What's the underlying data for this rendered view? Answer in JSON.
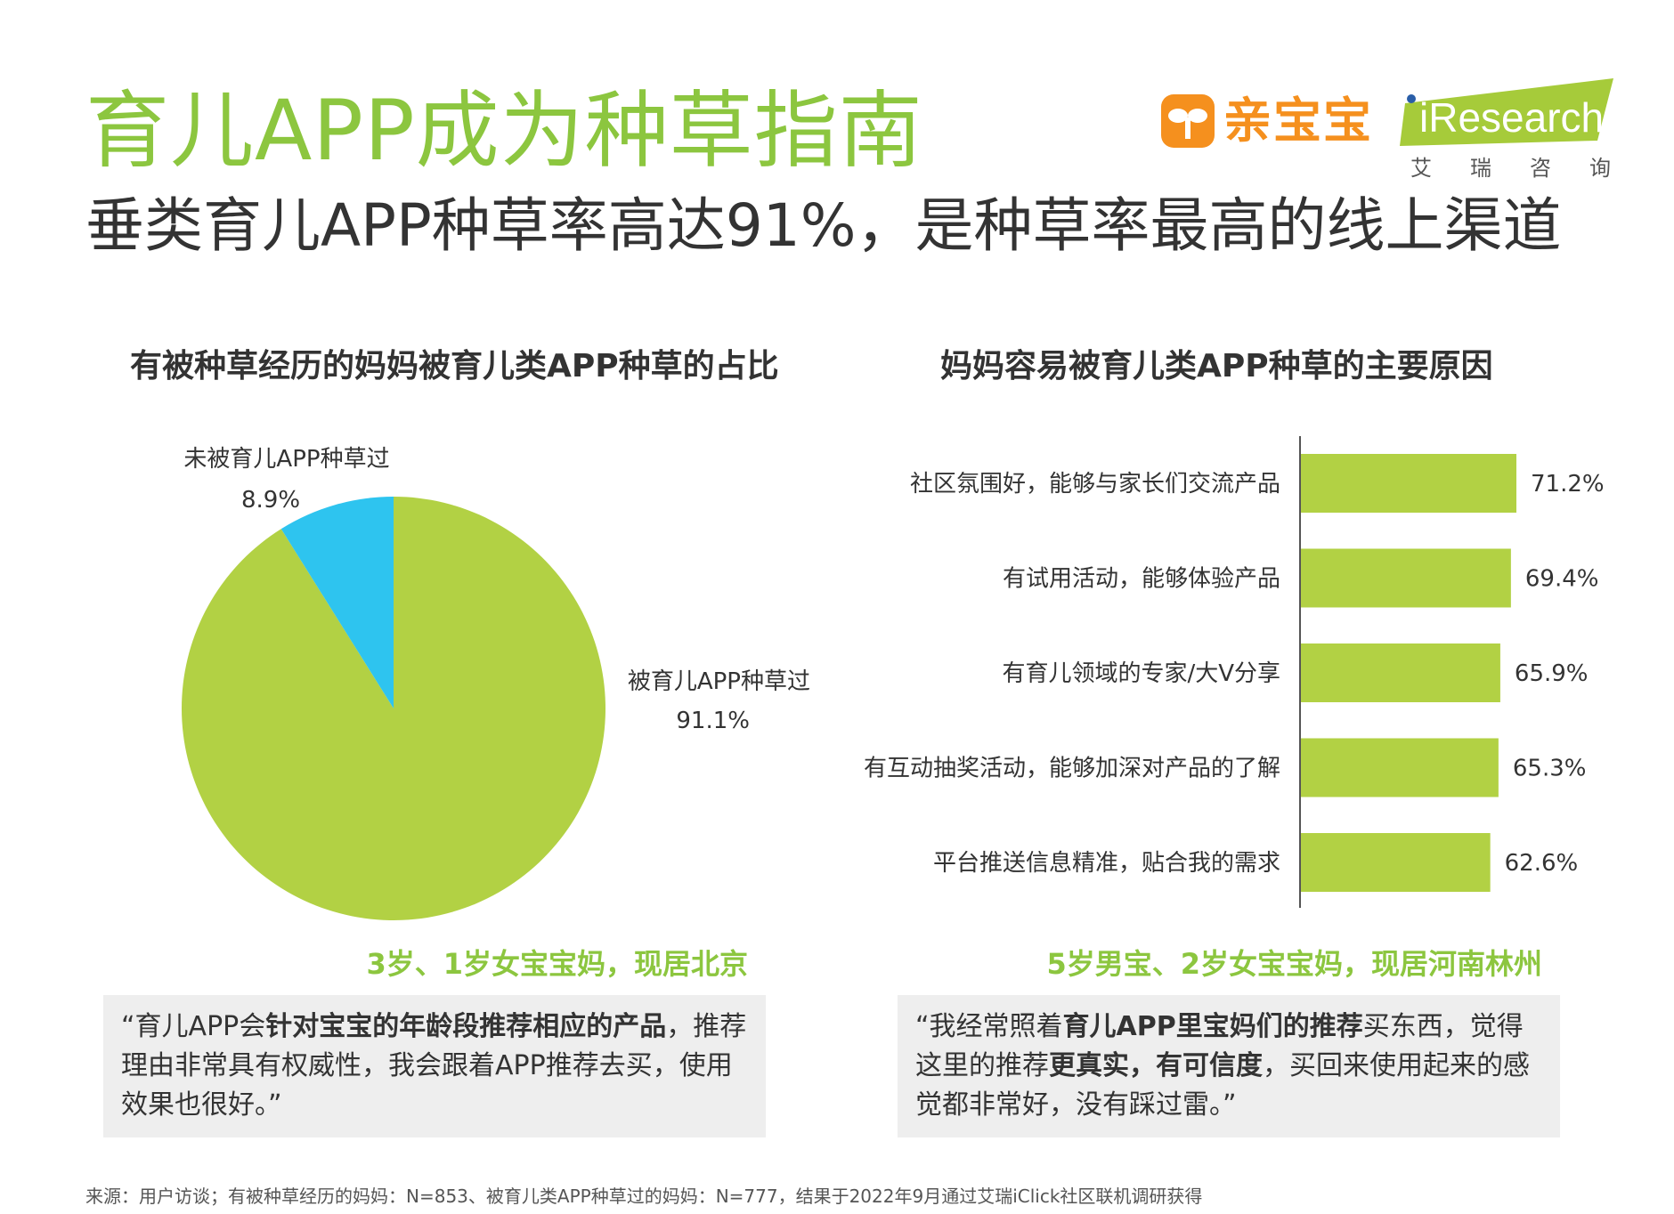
{
  "header": {
    "title": "育儿APP成为种草指南",
    "subtitle": "垂类育儿APP种草率高达91%，是种草率最高的线上渠道"
  },
  "logos": {
    "qinbaobao": "亲宝宝",
    "iresearch_en": "Research",
    "iresearch_cn": "艾瑞咨询"
  },
  "colors": {
    "accent_green": "#8cc63f",
    "bar_green": "#b2d144",
    "pie_blue": "#2ec4ef",
    "orange": "#f5901e"
  },
  "chart_data": [
    {
      "type": "pie",
      "title": "有被种草经历的妈妈被育儿类APP种草的占比",
      "slices": [
        {
          "label": "被育儿APP种草过",
          "value": 91.1,
          "value_label": "91.1%",
          "color": "#b2d144"
        },
        {
          "label": "未被育儿APP种草过",
          "value": 8.9,
          "value_label": "8.9%",
          "color": "#2ec4ef"
        }
      ]
    },
    {
      "type": "bar",
      "orientation": "horizontal",
      "title": "妈妈容易被育儿类APP种草的主要原因",
      "categories": [
        "社区氛围好，能够与家长们交流产品",
        "有试用活动，能够体验产品",
        "有育儿领域的专家/大V分享",
        "有互动抽奖活动，能够加深对产品的了解",
        "平台推送信息精准，贴合我的需求"
      ],
      "values": [
        71.2,
        69.4,
        65.9,
        65.3,
        62.6
      ],
      "value_labels": [
        "71.2%",
        "69.4%",
        "65.9%",
        "65.3%",
        "62.6%"
      ],
      "color": "#b2d144",
      "xlim": [
        0,
        100
      ]
    }
  ],
  "quotes": [
    {
      "author": "3岁、1岁女宝宝妈，现居北京",
      "parts": [
        {
          "t": "“育儿APP会",
          "b": false
        },
        {
          "t": "针对宝宝的年龄段推荐相应的产品",
          "b": true
        },
        {
          "t": "，推荐理由非常具有权威性，我会跟着APP推荐去买，使用效果也很好。”",
          "b": false
        }
      ]
    },
    {
      "author": "5岁男宝、2岁女宝宝妈，现居河南林州",
      "parts": [
        {
          "t": "“我经常照着",
          "b": false
        },
        {
          "t": "育儿APP里宝妈们的推荐",
          "b": true
        },
        {
          "t": "买东西，觉得这里的推荐",
          "b": false
        },
        {
          "t": "更真实，有可信度",
          "b": true
        },
        {
          "t": "，买回来使用起来的感觉都非常好，没有踩过雷。”",
          "b": false
        }
      ]
    }
  ],
  "source": "来源：用户访谈；有被种草经历的妈妈：N=853、被育儿类APP种草过的妈妈：N=777，结果于2022年9月通过艾瑞iClick社区联机调研获得"
}
